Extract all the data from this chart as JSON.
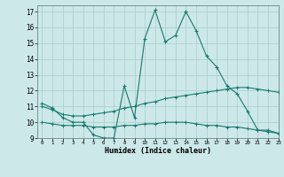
{
  "bg_color": "#cce8e8",
  "grid_color": "#aacccc",
  "line_color": "#1a7a6e",
  "xlabel": "Humidex (Indice chaleur)",
  "xlim": [
    -0.5,
    23
  ],
  "ylim": [
    9,
    17.4
  ],
  "yticks": [
    9,
    10,
    11,
    12,
    13,
    14,
    15,
    16,
    17
  ],
  "xticks": [
    0,
    1,
    2,
    3,
    4,
    5,
    6,
    7,
    8,
    9,
    10,
    11,
    12,
    13,
    14,
    15,
    16,
    17,
    18,
    19,
    20,
    21,
    22,
    23
  ],
  "line1_x": [
    0,
    1,
    2,
    3,
    4,
    5,
    6,
    7,
    8,
    9,
    10,
    11,
    12,
    13,
    14,
    15,
    16,
    17,
    18,
    19,
    20,
    21,
    22,
    23
  ],
  "line1_y": [
    11.2,
    10.9,
    10.3,
    10.0,
    10.0,
    9.2,
    9.0,
    9.0,
    12.3,
    10.3,
    15.3,
    17.1,
    15.1,
    15.5,
    17.0,
    15.8,
    14.2,
    13.5,
    12.3,
    11.8,
    10.7,
    9.5,
    9.5,
    9.3
  ],
  "line2_x": [
    0,
    1,
    2,
    3,
    4,
    5,
    6,
    7,
    8,
    9,
    10,
    11,
    12,
    13,
    14,
    15,
    16,
    17,
    18,
    19,
    20,
    21,
    22,
    23
  ],
  "line2_y": [
    11.0,
    10.8,
    10.5,
    10.4,
    10.4,
    10.5,
    10.6,
    10.7,
    10.9,
    11.0,
    11.2,
    11.3,
    11.5,
    11.6,
    11.7,
    11.8,
    11.9,
    12.0,
    12.1,
    12.2,
    12.2,
    12.1,
    12.0,
    11.9
  ],
  "line3_x": [
    0,
    1,
    2,
    3,
    4,
    5,
    6,
    7,
    8,
    9,
    10,
    11,
    12,
    13,
    14,
    15,
    16,
    17,
    18,
    19,
    20,
    21,
    22,
    23
  ],
  "line3_y": [
    10.0,
    9.9,
    9.8,
    9.8,
    9.8,
    9.7,
    9.7,
    9.7,
    9.8,
    9.8,
    9.9,
    9.9,
    10.0,
    10.0,
    10.0,
    9.9,
    9.8,
    9.8,
    9.7,
    9.7,
    9.6,
    9.5,
    9.4,
    9.3
  ]
}
